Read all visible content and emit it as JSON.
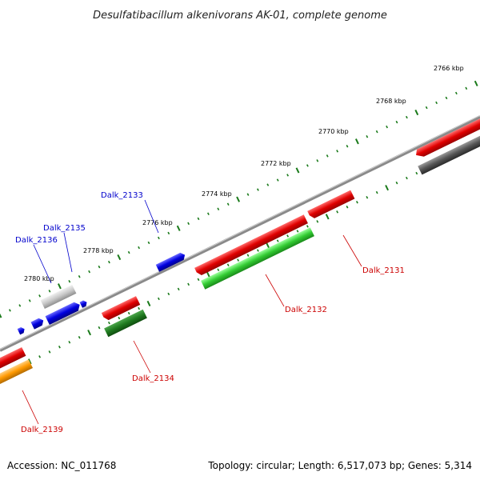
{
  "title": "Desulfatibacillum alkenivorans AK-01, complete genome",
  "footer": {
    "accession": "Accession: NC_011768",
    "summary": "Topology: circular; Length: 6,517,073 bp; Genes: 5,314"
  },
  "ticks": [
    "2766 kbp",
    "2768 kbp",
    "2770 kbp",
    "2772 kbp",
    "2774 kbp",
    "2776 kbp",
    "2778 kbp",
    "2780 kbp"
  ],
  "gene_labels": {
    "top": [
      "Dalk_2133",
      "Dalk_2135",
      "Dalk_2136"
    ],
    "bottom": [
      "Dalk_2131",
      "Dalk_2132",
      "Dalk_2134",
      "Dalk_2139"
    ]
  },
  "colors": {
    "backbone": "#8a8a8a",
    "tick": "#1a7a1a",
    "label_top": "#0000cc",
    "label_bottom": "#cc0000",
    "red": "#e00000",
    "green": "#33cc33",
    "dark_green": "#1f7a1f",
    "blue": "#0000e0",
    "gray": "#c8c8c8",
    "dark_gray": "#555555",
    "orange": "#ff9900"
  }
}
